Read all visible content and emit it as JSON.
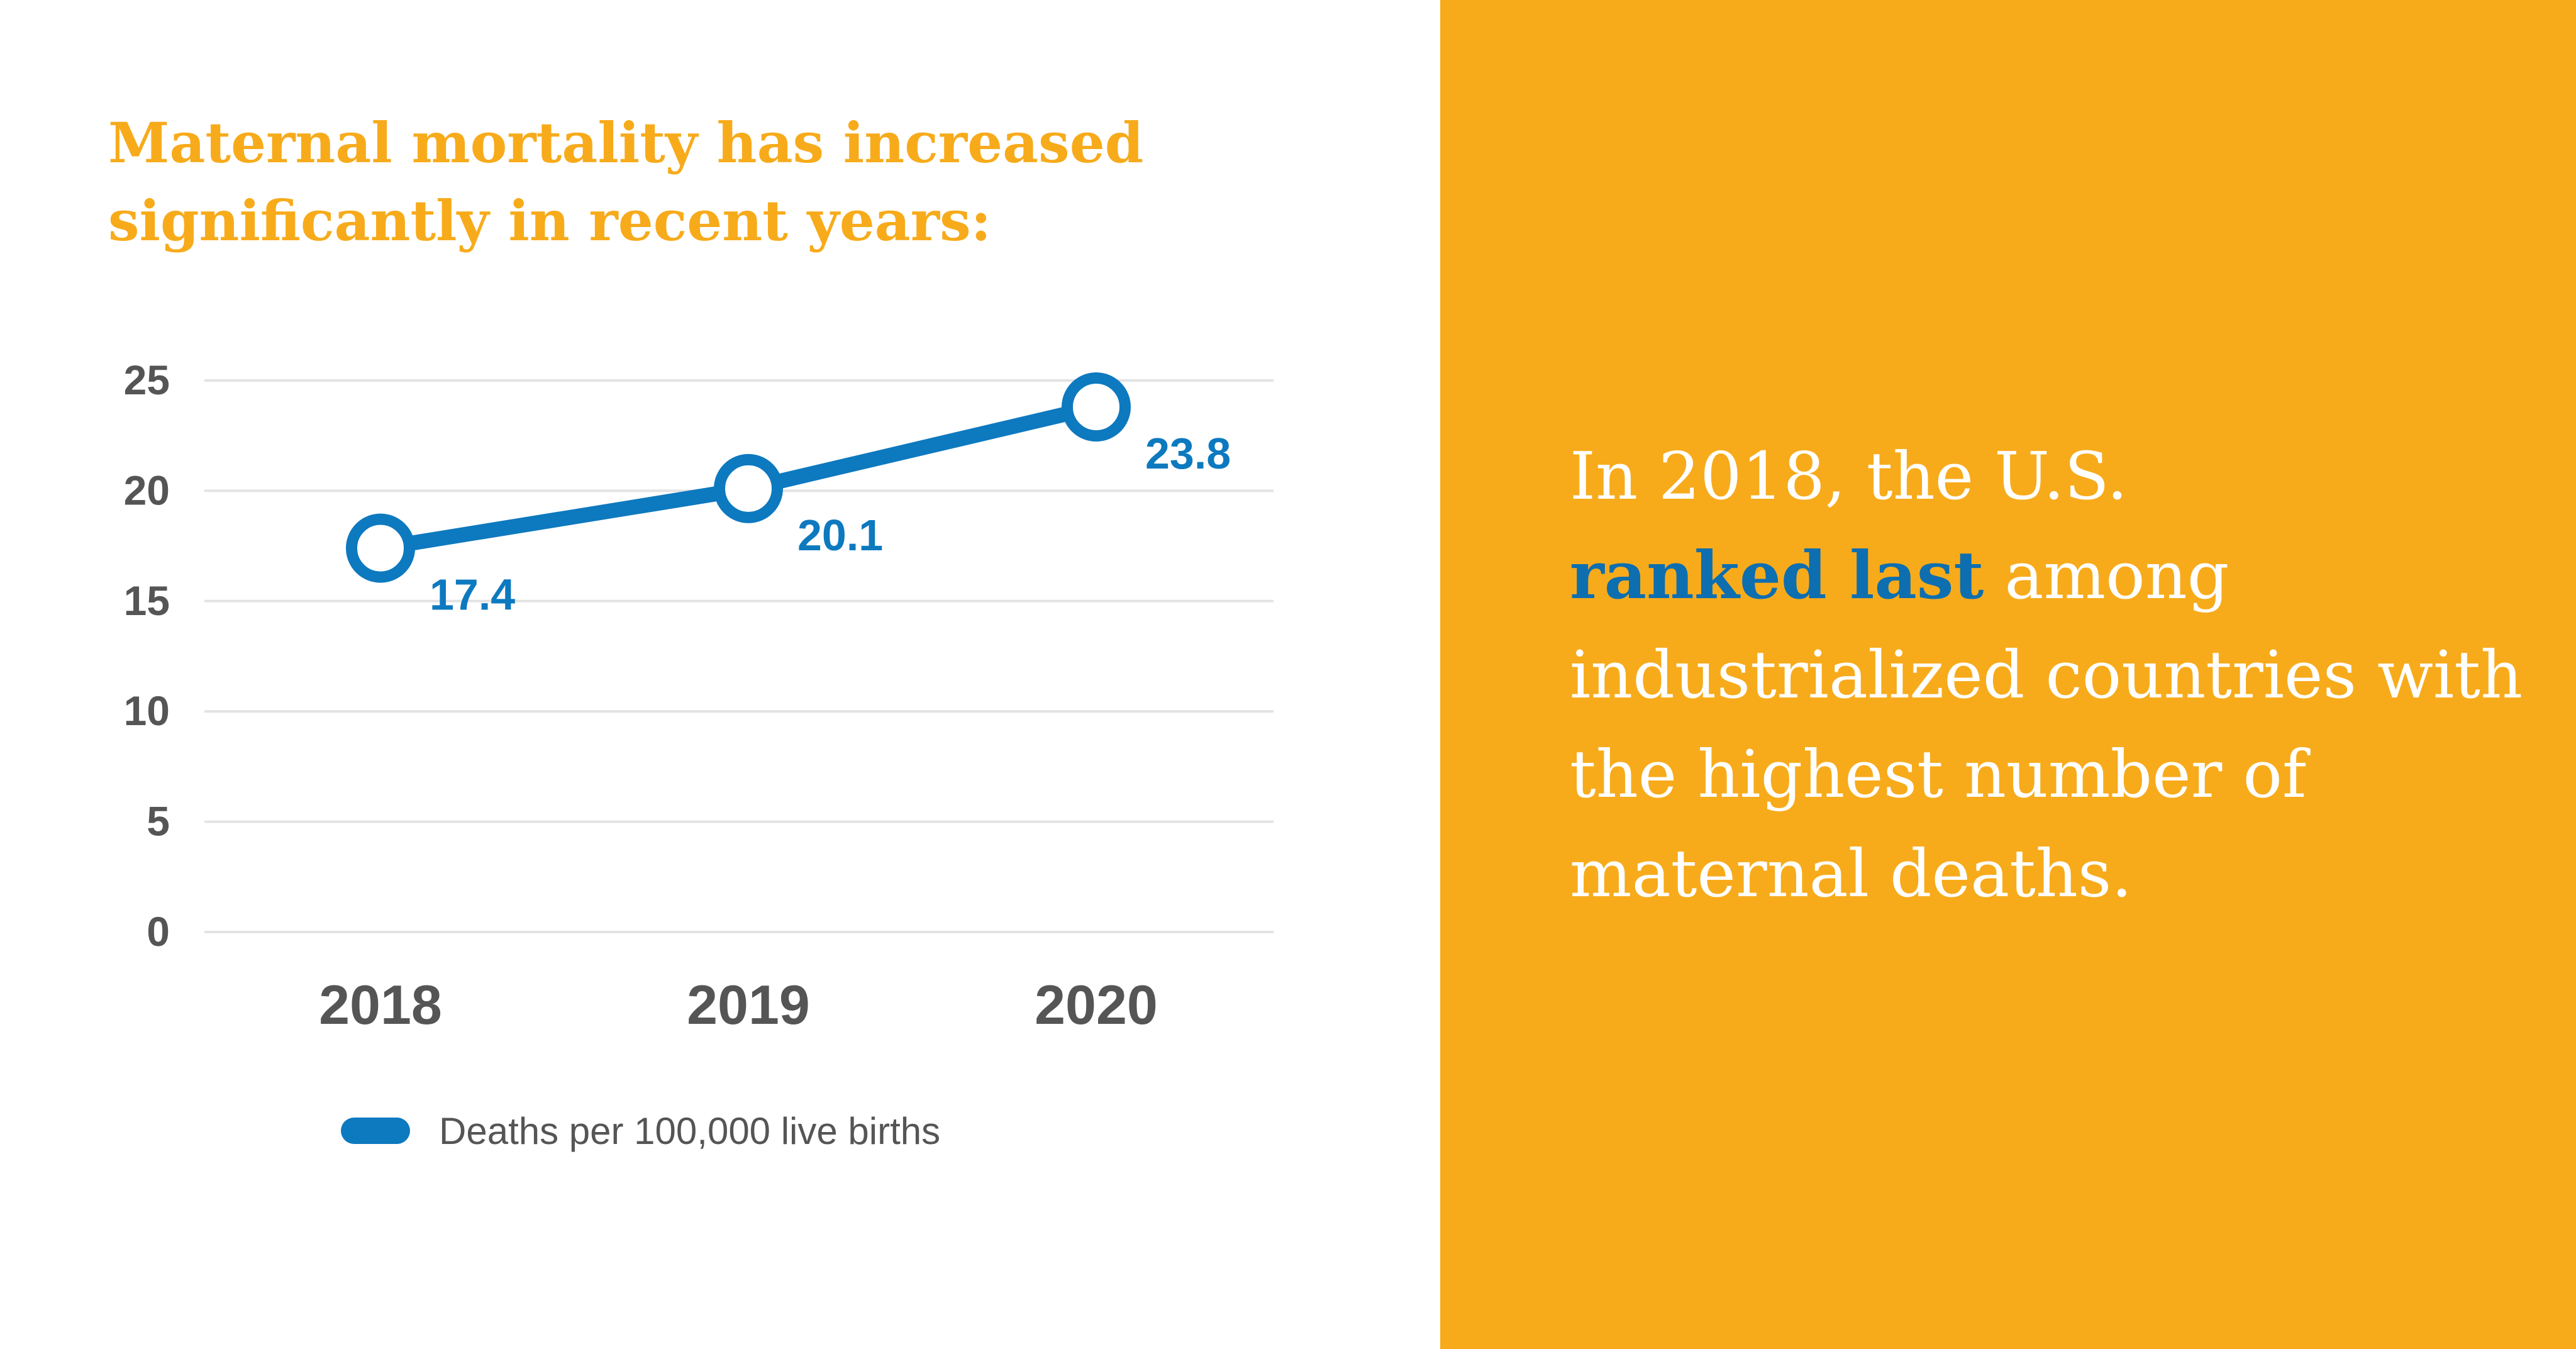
{
  "title": "Maternal mortality has increased significantly in recent years:",
  "chart_data": {
    "type": "line",
    "categories": [
      "2018",
      "2019",
      "2020"
    ],
    "series": [
      {
        "name": "Deaths per 100,000 live births",
        "values": [
          17.4,
          20.1,
          23.8
        ]
      }
    ],
    "data_labels": [
      "17.4",
      "20.1",
      "23.8"
    ],
    "y_ticks": [
      "0",
      "5",
      "10",
      "15",
      "20",
      "25"
    ],
    "ylim": [
      0,
      25
    ],
    "xlabel": "",
    "ylabel": "",
    "grid": true,
    "legend": "bottom",
    "colors": {
      "line": "#0d79bf",
      "grid": "#e3e3e3",
      "tick_text": "#555555"
    }
  },
  "legend": {
    "label": "Deaths per 100,000 live births"
  },
  "callout": {
    "lead": "In 2018, the U.S.",
    "highlight": "ranked last",
    "rest": "among industrialized countries with the highest number of maternal deaths."
  },
  "colors": {
    "accent": "#f7ab1b",
    "highlight": "#0d6eb0",
    "panel_text": "#ffffff"
  }
}
